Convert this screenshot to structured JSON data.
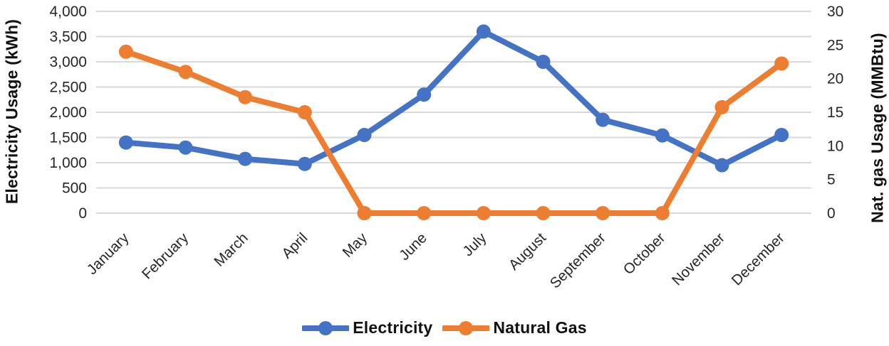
{
  "chart_data": {
    "type": "line",
    "categories": [
      "January",
      "February",
      "March",
      "April",
      "May",
      "June",
      "July",
      "August",
      "September",
      "October",
      "November",
      "December"
    ],
    "series": [
      {
        "name": "Electricity",
        "axis": "left",
        "color": "#4472C4",
        "values": [
          1400,
          1300,
          1075,
          975,
          1550,
          2350,
          3600,
          3000,
          1850,
          1540,
          950,
          1550
        ]
      },
      {
        "name": "Natural Gas",
        "axis": "right",
        "color": "#ED7D31",
        "values": [
          24,
          21,
          17.25,
          15,
          0,
          0,
          0,
          0,
          0,
          0,
          15.75,
          22.25
        ]
      }
    ],
    "left_axis": {
      "label": "Electricity Usage (kWh)",
      "min": 0,
      "max": 4000,
      "step": 500,
      "ticks": [
        "0",
        "500",
        "1,000",
        "1,500",
        "2,000",
        "2,500",
        "3,000",
        "3,500",
        "4,000"
      ]
    },
    "right_axis": {
      "label": "Nat. gas Usage (MMBtu)",
      "min": 0,
      "max": 30,
      "step": 5,
      "ticks": [
        "0",
        "5",
        "10",
        "15",
        "20",
        "25",
        "30"
      ]
    },
    "legend_position": "bottom",
    "grid": true,
    "style": {
      "gridline_color": "#D9D9D9",
      "tick_text_color": "#262626",
      "title_text_color": "#111111",
      "line_width": 8,
      "marker_radius": 10
    }
  }
}
